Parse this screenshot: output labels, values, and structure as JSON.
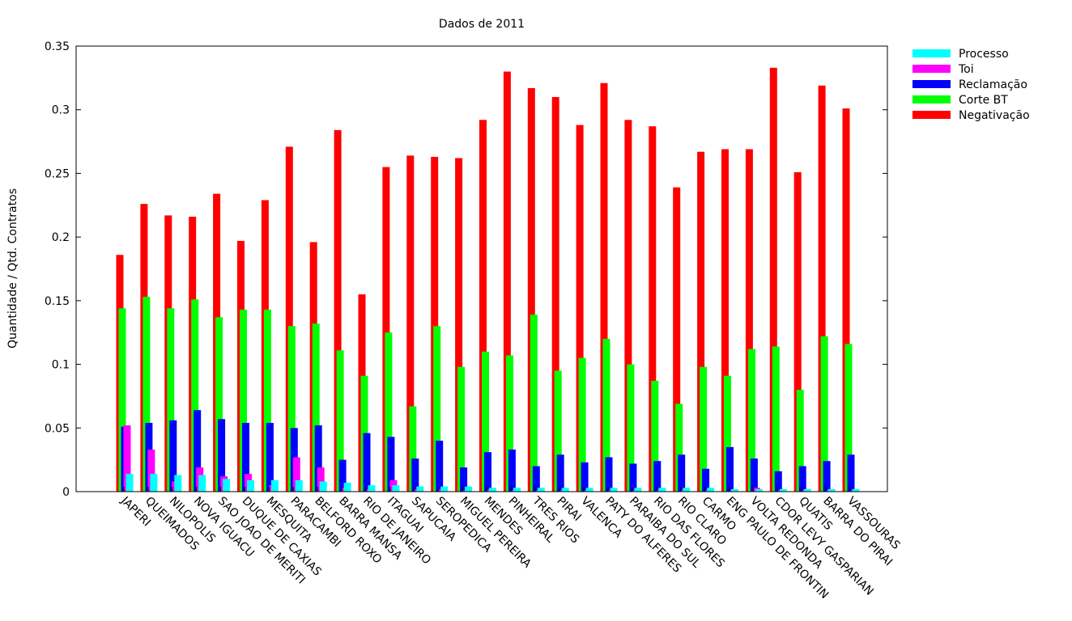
{
  "chart_data": {
    "type": "bar",
    "title": "Dados de 2011",
    "xlabel": "",
    "ylabel": "Quantidade / Qtd. Contratos",
    "ylim": [
      0,
      0.35
    ],
    "yticks": [
      "0",
      "0.05",
      "0.1",
      "0.15",
      "0.2",
      "0.25",
      "0.3",
      "0.35"
    ],
    "legend_position": "top-right, outside plot",
    "grid": false,
    "categories": [
      "JAPERI",
      "QUEIMADOS",
      "NILOPOLIS",
      "NOVA IGUACU",
      "SAO JOAO DE MERITI",
      "DUQUE DE CAXIAS",
      "MESQUITA",
      "PARACAMBI",
      "BELFORD ROXO",
      "BARRA MANSA",
      "RIO DE JANEIRO",
      "ITAGUAI",
      "SAPUCAIA",
      "SEROPEDICA",
      "MIGUEL PEREIRA",
      "MENDES",
      "PINHEIRAL",
      "TRES RIOS",
      "PIRAI",
      "VALENCA",
      "PATY DO ALFERES",
      "PARAIBA DO SUL",
      "RIO DAS FLORES",
      "RIO CLARO",
      "CARMO",
      "ENG PAULO DE FRONTIN",
      "VOLTA REDONDA",
      "CDOR LEVY GASPARIAN",
      "QUATIS",
      "BARRA DO PIRAI",
      "VASSOURAS"
    ],
    "series": [
      {
        "name": "Processo",
        "color": "#00ffff",
        "values": [
          0.014,
          0.014,
          0.013,
          0.013,
          0.01,
          0.009,
          0.009,
          0.009,
          0.008,
          0.007,
          0.005,
          0.005,
          0.004,
          0.004,
          0.004,
          0.003,
          0.003,
          0.003,
          0.003,
          0.003,
          0.003,
          0.003,
          0.003,
          0.003,
          0.003,
          0.002,
          0.002,
          0.002,
          0.002,
          0.002,
          0.002
        ]
      },
      {
        "name": "Toi",
        "color": "#ff00ff",
        "values": [
          0.052,
          0.033,
          0.008,
          0.019,
          0.012,
          0.014,
          0.005,
          0.027,
          0.019,
          0.003,
          0.002,
          0.009,
          0.002,
          0.002,
          0.001,
          0.002,
          0.001,
          0.001,
          0.001,
          0.001,
          0.001,
          0.001,
          0.001,
          0.001,
          0.001,
          0.001,
          0.003,
          0.001,
          0.001,
          0.001,
          0.001
        ]
      },
      {
        "name": "Reclamação",
        "color": "#0000ff",
        "values": [
          0.051,
          0.054,
          0.056,
          0.064,
          0.057,
          0.054,
          0.054,
          0.05,
          0.052,
          0.025,
          0.046,
          0.043,
          0.026,
          0.04,
          0.019,
          0.031,
          0.033,
          0.02,
          0.029,
          0.023,
          0.027,
          0.022,
          0.024,
          0.029,
          0.018,
          0.035,
          0.026,
          0.016,
          0.02,
          0.024,
          0.029
        ]
      },
      {
        "name": "Corte BT",
        "color": "#00ff00",
        "values": [
          0.144,
          0.153,
          0.144,
          0.151,
          0.137,
          0.143,
          0.143,
          0.13,
          0.132,
          0.111,
          0.091,
          0.125,
          0.067,
          0.13,
          0.098,
          0.11,
          0.107,
          0.139,
          0.095,
          0.105,
          0.12,
          0.1,
          0.087,
          0.069,
          0.098,
          0.091,
          0.112,
          0.114,
          0.08,
          0.122,
          0.116
        ]
      },
      {
        "name": "Negativação",
        "color": "#ff0000",
        "values": [
          0.186,
          0.226,
          0.217,
          0.216,
          0.234,
          0.197,
          0.229,
          0.271,
          0.196,
          0.284,
          0.155,
          0.255,
          0.264,
          0.263,
          0.262,
          0.292,
          0.33,
          0.317,
          0.31,
          0.288,
          0.321,
          0.292,
          0.287,
          0.239,
          0.267,
          0.269,
          0.269,
          0.333,
          0.251,
          0.319,
          0.301
        ]
      }
    ]
  }
}
